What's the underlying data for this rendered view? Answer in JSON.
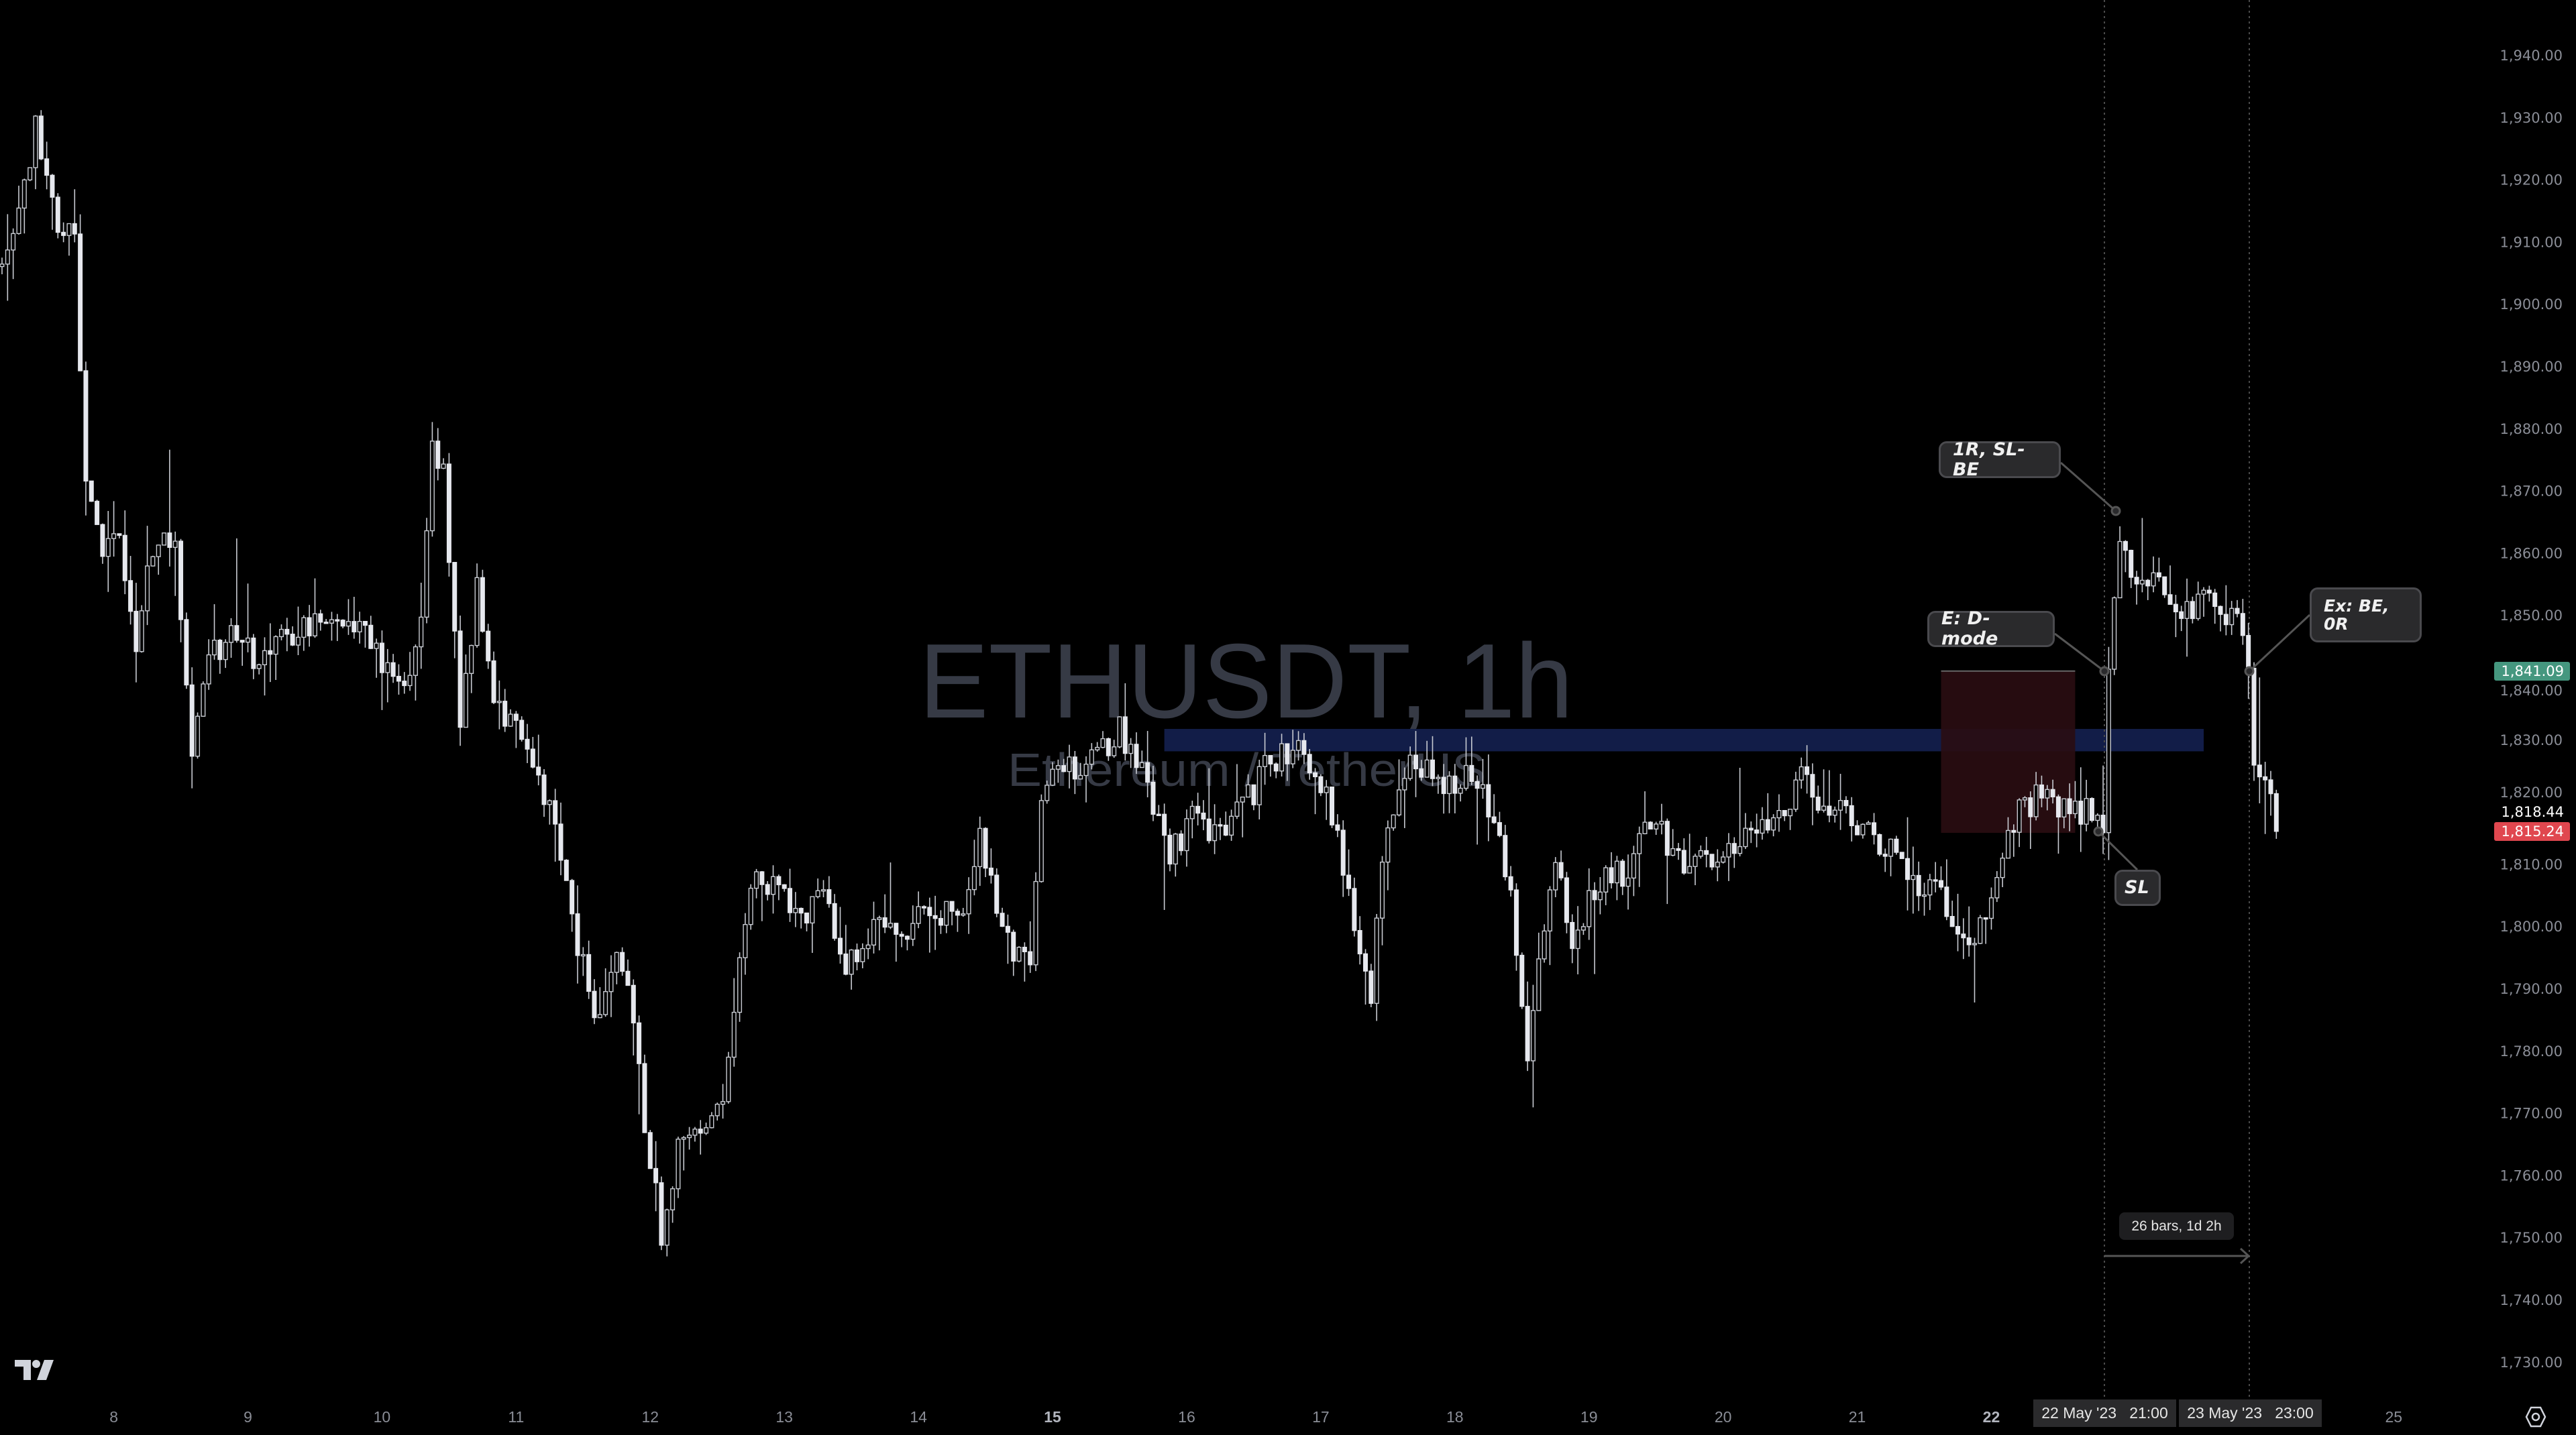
{
  "chart_data": {
    "type": "candlestick",
    "title": "ETHUSDT, 1h",
    "subtitle": "Ethereum / TetherUS",
    "ylim": [
      1725,
      1945
    ],
    "grid": false,
    "y_ticks": [
      "1,940.00",
      "1,930.00",
      "1,920.00",
      "1,910.00",
      "1,900.00",
      "1,890.00",
      "1,880.00",
      "1,870.00",
      "1,860.00",
      "1,850.00",
      "1,840.00",
      "1,830.00",
      "1,820.00",
      "1,810.00",
      "1,800.00",
      "1,790.00",
      "1,780.00",
      "1,770.00",
      "1,760.00",
      "1,750.00",
      "1,740.00",
      "1,730.00"
    ],
    "x_ticks": [
      "8",
      "9",
      "10",
      "11",
      "12",
      "13",
      "14",
      "15",
      "16",
      "17",
      "18",
      "19",
      "20",
      "21",
      "22",
      "25"
    ],
    "close_path": [
      [
        "2023-05-07 04:00",
        1904
      ],
      [
        "2023-05-07 07:00",
        1914
      ],
      [
        "2023-05-07 10:00",
        1928
      ],
      [
        "2023-05-07 14:00",
        1914
      ],
      [
        "2023-05-07 17:00",
        1909
      ],
      [
        "2023-05-07 19:00",
        1872
      ],
      [
        "2023-05-07 22:00",
        1859
      ],
      [
        "2023-05-08 01:00",
        1864
      ],
      [
        "2023-05-08 04:00",
        1846
      ],
      [
        "2023-05-08 06:00",
        1859
      ],
      [
        "2023-05-08 11:00",
        1864
      ],
      [
        "2023-05-08 14:00",
        1827
      ],
      [
        "2023-05-08 17:00",
        1843
      ],
      [
        "2023-05-08 21:00",
        1846
      ],
      [
        "2023-05-09 02:00",
        1843
      ],
      [
        "2023-05-09 06:00",
        1846
      ],
      [
        "2023-05-09 10:00",
        1848
      ],
      [
        "2023-05-09 15:00",
        1851
      ],
      [
        "2023-05-09 19:00",
        1848
      ],
      [
        "2023-05-10 00:00",
        1843
      ],
      [
        "2023-05-10 04:00",
        1838
      ],
      [
        "2023-05-10 07:00",
        1851
      ],
      [
        "2023-05-10 09:00",
        1877
      ],
      [
        "2023-05-10 11:00",
        1872
      ],
      [
        "2023-05-10 14:00",
        1832
      ],
      [
        "2023-05-10 17:00",
        1854
      ],
      [
        "2023-05-10 20:00",
        1835
      ],
      [
        "2023-05-11 01:00",
        1830
      ],
      [
        "2023-05-11 05:00",
        1822
      ],
      [
        "2023-05-11 09:00",
        1806
      ],
      [
        "2023-05-11 14:00",
        1785
      ],
      [
        "2023-05-11 18:00",
        1795
      ],
      [
        "2023-05-11 21:00",
        1785
      ],
      [
        "2023-05-11 23:00",
        1767
      ],
      [
        "2023-05-12 02:00",
        1751
      ],
      [
        "2023-05-12 05:00",
        1764
      ],
      [
        "2023-05-12 09:00",
        1767
      ],
      [
        "2023-05-12 13:00",
        1770
      ],
      [
        "2023-05-12 16:00",
        1796
      ],
      [
        "2023-05-12 19:00",
        1809
      ],
      [
        "2023-05-12 22:00",
        1806
      ],
      [
        "2023-05-13 03:00",
        1801
      ],
      [
        "2023-05-13 07:00",
        1804
      ],
      [
        "2023-05-13 11:00",
        1793
      ],
      [
        "2023-05-13 16:00",
        1801
      ],
      [
        "2023-05-13 20:00",
        1798
      ],
      [
        "2023-05-14 01:00",
        1804
      ],
      [
        "2023-05-14 07:00",
        1801
      ],
      [
        "2023-05-14 11:00",
        1814
      ],
      [
        "2023-05-14 15:00",
        1798
      ],
      [
        "2023-05-14 20:00",
        1795
      ],
      [
        "2023-05-14 22:00",
        1822
      ],
      [
        "2023-05-15 02:00",
        1827
      ],
      [
        "2023-05-15 06:00",
        1825
      ],
      [
        "2023-05-15 12:00",
        1832
      ],
      [
        "2023-05-15 16:00",
        1825
      ],
      [
        "2023-05-15 21:00",
        1811
      ],
      [
        "2023-05-16 01:00",
        1817
      ],
      [
        "2023-05-16 06:00",
        1814
      ],
      [
        "2023-05-16 10:00",
        1819
      ],
      [
        "2023-05-16 14:00",
        1825
      ],
      [
        "2023-05-16 20:00",
        1830
      ],
      [
        "2023-05-17 01:00",
        1822
      ],
      [
        "2023-05-17 04:00",
        1809
      ],
      [
        "2023-05-17 07:00",
        1798
      ],
      [
        "2023-05-17 09:00",
        1790
      ],
      [
        "2023-05-17 12:00",
        1817
      ],
      [
        "2023-05-17 17:00",
        1827
      ],
      [
        "2023-05-17 21:00",
        1822
      ],
      [
        "2023-05-18 02:00",
        1825
      ],
      [
        "2023-05-18 06:00",
        1819
      ],
      [
        "2023-05-18 10:00",
        1806
      ],
      [
        "2023-05-18 13:00",
        1780
      ],
      [
        "2023-05-18 15:00",
        1795
      ],
      [
        "2023-05-18 18:00",
        1811
      ],
      [
        "2023-05-18 21:00",
        1798
      ],
      [
        "2023-05-19 01:00",
        1806
      ],
      [
        "2023-05-19 07:00",
        1809
      ],
      [
        "2023-05-19 11:00",
        1817
      ],
      [
        "2023-05-19 16:00",
        1811
      ],
      [
        "2023-05-19 22:00",
        1811
      ],
      [
        "2023-05-20 04:00",
        1814
      ],
      [
        "2023-05-20 10:00",
        1817
      ],
      [
        "2023-05-20 14:00",
        1825
      ],
      [
        "2023-05-20 18:00",
        1819
      ],
      [
        "2023-05-20 23:00",
        1817
      ],
      [
        "2023-05-21 03:00",
        1814
      ],
      [
        "2023-05-21 08:00",
        1811
      ],
      [
        "2023-05-21 12:00",
        1806
      ],
      [
        "2023-05-21 16:00",
        1804
      ],
      [
        "2023-05-21 20:00",
        1795
      ],
      [
        "2023-05-22 00:00",
        1804
      ],
      [
        "2023-05-22 04:00",
        1817
      ],
      [
        "2023-05-22 09:00",
        1822
      ],
      [
        "2023-05-22 13:00",
        1818
      ],
      [
        "2023-05-22 17:00",
        1819
      ],
      [
        "2023-05-22 20:00",
        1816
      ],
      [
        "2023-05-22 21:00",
        1843
      ],
      [
        "2023-05-22 23:00",
        1864
      ],
      [
        "2023-05-23 02:00",
        1855
      ],
      [
        "2023-05-23 07:00",
        1854
      ],
      [
        "2023-05-23 11:00",
        1851
      ],
      [
        "2023-05-23 15:00",
        1854
      ],
      [
        "2023-05-23 20:00",
        1848
      ],
      [
        "2023-05-23 22:00",
        1843
      ],
      [
        "2023-05-23 23:00",
        1825
      ],
      [
        "2023-05-24 01:00",
        1825
      ],
      [
        "2023-05-24 03:00",
        1815.24
      ]
    ]
  },
  "zones": {
    "blue_band": {
      "top": 1831.7,
      "bottom": 1828.1,
      "from": "2023-05-15 20:00",
      "to": "2023-05-23 14:00",
      "color": "#131f4c"
    },
    "red_box": {
      "top": 1841,
      "bottom": 1815,
      "from": "2023-05-21 15:00",
      "to": "2023-05-22 15:00",
      "color": "#2a0d12"
    }
  },
  "annotations": {
    "one_r": "1R, SL-BE",
    "entry": "E: D-mode",
    "exit": "Ex: BE, 0R",
    "sl": "SL"
  },
  "measure": {
    "label": "26 bars, 1d 2h"
  },
  "price_tags": {
    "exit_price": {
      "value": "1,841.09",
      "color": "#45977f"
    },
    "prev_close": {
      "value": "1,818.44"
    },
    "last_price": {
      "value": "1,815.24",
      "color": "#e0474f"
    }
  },
  "time_tags": {
    "start": "22 May '23   21:00",
    "end": "23 May '23   23:00"
  },
  "icons": {
    "logo": "tradingview-logo",
    "settings": "settings-hexagon-icon"
  }
}
